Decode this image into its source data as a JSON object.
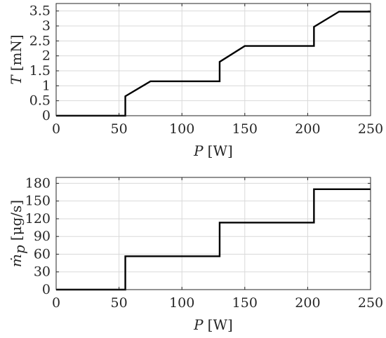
{
  "chart_data": [
    {
      "type": "line",
      "x_tick_labels": [
        "0",
        "50",
        "100",
        "150",
        "200",
        "250"
      ],
      "x_ticks": [
        0,
        50,
        100,
        150,
        200,
        250
      ],
      "y_tick_labels": [
        "0",
        "0.5",
        "1",
        "1.5",
        "2",
        "2.5",
        "3",
        "3.5"
      ],
      "y_ticks": [
        0,
        0.5,
        1,
        1.5,
        2,
        2.5,
        3,
        3.5
      ],
      "xlim": [
        0,
        250
      ],
      "ylim": [
        0,
        3.75
      ],
      "xlabel": {
        "symbol": "P",
        "unit": "[W]"
      },
      "ylabel": {
        "symbol": "T",
        "unit": "[mN]"
      },
      "grid": true,
      "line_color": "#000000",
      "series": [
        {
          "x": [
            0,
            55,
            55,
            75,
            130,
            130,
            150,
            205,
            205,
            225,
            250
          ],
          "y": [
            0,
            0,
            0.65,
            1.15,
            1.15,
            1.8,
            2.33,
            2.33,
            2.97,
            3.48,
            3.48
          ]
        }
      ]
    },
    {
      "type": "line",
      "x_tick_labels": [
        "0",
        "50",
        "100",
        "150",
        "200",
        "250"
      ],
      "x_ticks": [
        0,
        50,
        100,
        150,
        200,
        250
      ],
      "y_tick_labels": [
        "0",
        "30",
        "60",
        "90",
        "120",
        "150",
        "180"
      ],
      "y_ticks": [
        0,
        30,
        60,
        90,
        120,
        150,
        180
      ],
      "xlim": [
        0,
        250
      ],
      "ylim": [
        0,
        190
      ],
      "xlabel": {
        "symbol": "P",
        "unit": "[W]"
      },
      "ylabel": {
        "symbol": "ṁ",
        "subscript": "p",
        "unit": "[μg/s]"
      },
      "grid": true,
      "line_color": "#000000",
      "series": [
        {
          "x": [
            0,
            55,
            55,
            130,
            130,
            205,
            205,
            250
          ],
          "y": [
            0,
            0,
            56.5,
            56.5,
            113.5,
            113.5,
            170,
            170
          ]
        }
      ]
    }
  ]
}
